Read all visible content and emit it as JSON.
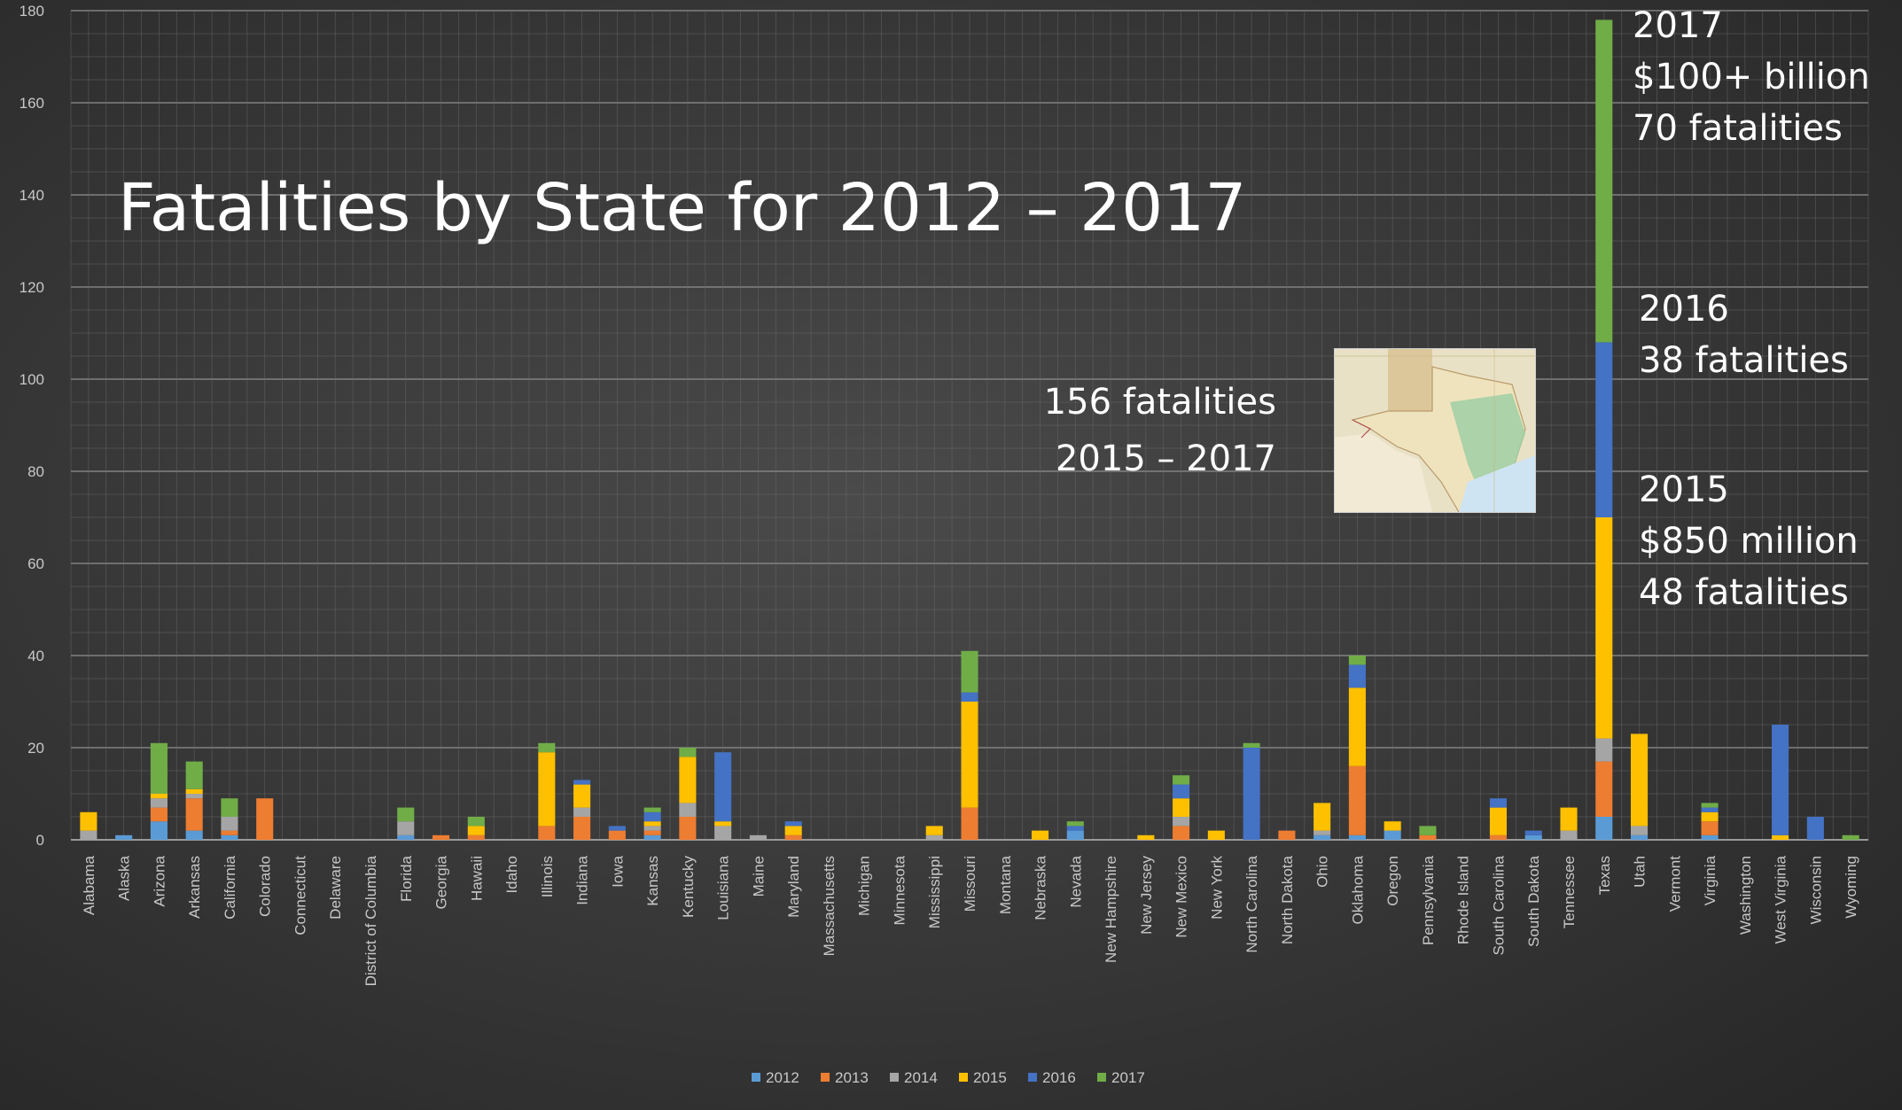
{
  "chart_data": {
    "type": "bar",
    "stacked": true,
    "title": "Fatalities by State for 2012 – 2017",
    "xlabel": "",
    "ylabel": "",
    "ylim": [
      0,
      180
    ],
    "yticks": [
      0,
      20,
      40,
      60,
      80,
      100,
      120,
      140,
      160,
      180
    ],
    "grid": true,
    "legend_position": "bottom",
    "categories": [
      "Alabama",
      "Alaska",
      "Arizona",
      "Arkansas",
      "California",
      "Colorado",
      "Connecticut",
      "Delaware",
      "District of Columbia",
      "Florida",
      "Georgia",
      "Hawaii",
      "Idaho",
      "Illinois",
      "Indiana",
      "Iowa",
      "Kansas",
      "Kentucky",
      "Louisiana",
      "Maine",
      "Maryland",
      "Massachusetts",
      "Michigan",
      "Minnesota",
      "Mississippi",
      "Missouri",
      "Montana",
      "Nebraska",
      "Nevada",
      "New Hampshire",
      "New Jersey",
      "New Mexico",
      "New York",
      "North Carolina",
      "North Dakota",
      "Ohio",
      "Oklahoma",
      "Oregon",
      "Pennsylvania",
      "Rhode Island",
      "South Carolina",
      "South Dakota",
      "Tennessee",
      "Texas",
      "Utah",
      "Vermont",
      "Virginia",
      "Washington",
      "West Virginia",
      "Wisconsin",
      "Wyoming"
    ],
    "series": [
      {
        "name": "2012",
        "color": "#5b9bd5",
        "values": [
          0,
          1,
          4,
          2,
          1,
          0,
          0,
          0,
          0,
          1,
          0,
          0,
          0,
          0,
          0,
          0,
          1,
          0,
          0,
          0,
          0,
          0,
          0,
          0,
          0,
          0,
          0,
          0,
          2,
          0,
          0,
          0,
          0,
          0,
          0,
          1,
          1,
          2,
          0,
          0,
          0,
          1,
          0,
          5,
          1,
          0,
          1,
          0,
          0,
          0,
          0
        ]
      },
      {
        "name": "2013",
        "color": "#ed7d31",
        "values": [
          0,
          0,
          3,
          7,
          1,
          9,
          0,
          0,
          0,
          0,
          1,
          1,
          0,
          3,
          5,
          2,
          1,
          5,
          0,
          0,
          1,
          0,
          0,
          0,
          0,
          7,
          0,
          0,
          0,
          0,
          0,
          3,
          0,
          0,
          2,
          0,
          15,
          0,
          1,
          0,
          1,
          0,
          0,
          12,
          0,
          0,
          3,
          0,
          0,
          0,
          0
        ]
      },
      {
        "name": "2014",
        "color": "#a5a5a5",
        "values": [
          2,
          0,
          2,
          1,
          3,
          0,
          0,
          0,
          0,
          3,
          0,
          0,
          0,
          0,
          2,
          0,
          1,
          3,
          3,
          1,
          0,
          0,
          0,
          0,
          1,
          0,
          0,
          0,
          0,
          0,
          0,
          2,
          0,
          0,
          0,
          1,
          0,
          0,
          0,
          0,
          0,
          0,
          2,
          5,
          2,
          0,
          0,
          0,
          0,
          0,
          0
        ]
      },
      {
        "name": "2015",
        "color": "#ffc000",
        "values": [
          4,
          0,
          1,
          1,
          0,
          0,
          0,
          0,
          0,
          0,
          0,
          2,
          0,
          16,
          5,
          0,
          1,
          10,
          1,
          0,
          2,
          0,
          0,
          0,
          2,
          23,
          0,
          2,
          0,
          0,
          1,
          4,
          2,
          0,
          0,
          6,
          17,
          2,
          0,
          0,
          6,
          0,
          5,
          48,
          20,
          0,
          2,
          0,
          1,
          0,
          0
        ]
      },
      {
        "name": "2016",
        "color": "#4472c4",
        "values": [
          0,
          0,
          0,
          0,
          0,
          0,
          0,
          0,
          0,
          0,
          0,
          0,
          0,
          0,
          1,
          1,
          2,
          0,
          15,
          0,
          1,
          0,
          0,
          0,
          0,
          2,
          0,
          0,
          1,
          0,
          0,
          3,
          0,
          20,
          0,
          0,
          5,
          0,
          0,
          0,
          2,
          1,
          0,
          38,
          0,
          0,
          1,
          0,
          24,
          5,
          0
        ]
      },
      {
        "name": "2017",
        "color": "#70ad47",
        "values": [
          0,
          0,
          11,
          6,
          4,
          0,
          0,
          0,
          0,
          3,
          0,
          2,
          0,
          2,
          0,
          0,
          1,
          2,
          0,
          0,
          0,
          0,
          0,
          0,
          0,
          9,
          0,
          0,
          1,
          0,
          0,
          2,
          0,
          1,
          0,
          0,
          2,
          0,
          2,
          0,
          0,
          0,
          0,
          70,
          0,
          0,
          1,
          0,
          0,
          0,
          1
        ]
      }
    ]
  },
  "annotations": {
    "texas_2017": [
      "2017",
      "$100+ billion",
      "70 fatalities"
    ],
    "texas_2016": [
      "2016",
      "38 fatalities"
    ],
    "texas_2015": [
      "2015",
      "$850 million",
      "48 fatalities"
    ],
    "total": [
      "156 fatalities",
      "2015 – 2017"
    ]
  },
  "map_image": {
    "depicts": "Texas map",
    "colors": {
      "land": "#efe6c8",
      "green_region": "#8fc7a6",
      "water": "#cfe4f2"
    }
  }
}
